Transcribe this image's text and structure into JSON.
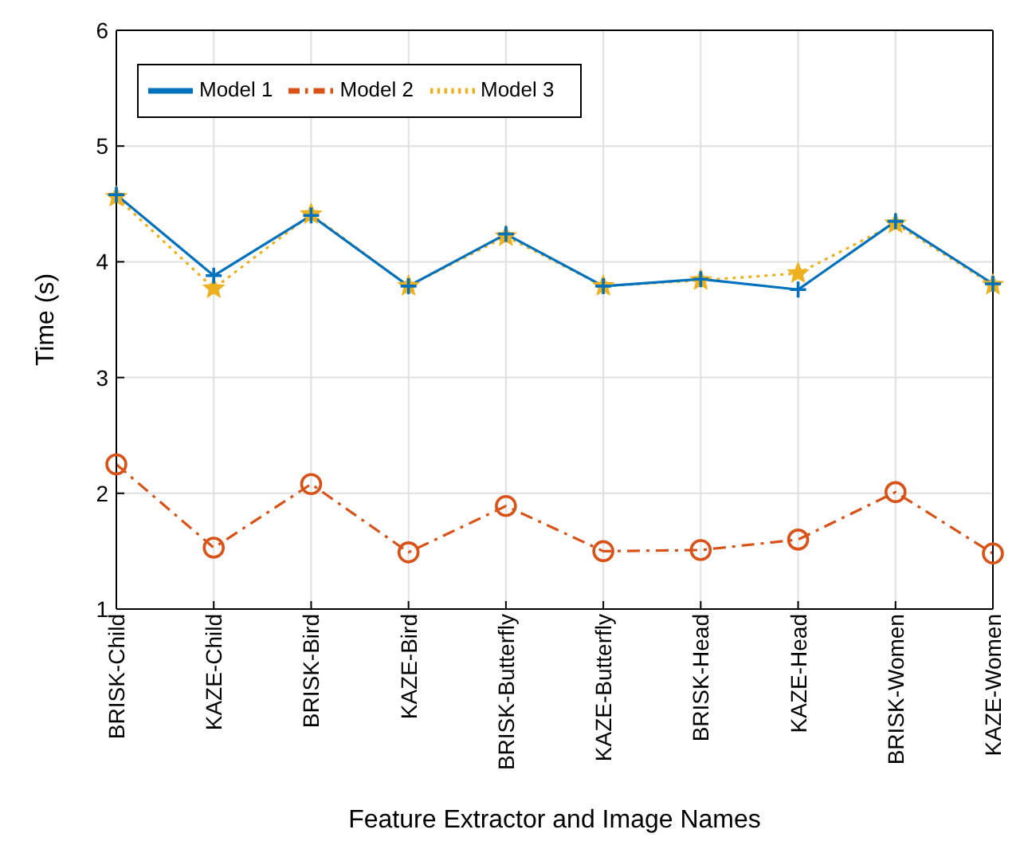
{
  "chart_data": {
    "type": "line",
    "xlabel": "Feature Extractor and Image Names",
    "ylabel": "Time (s)",
    "categories": [
      "BRISK-Child",
      "KAZE-Child",
      "BRISK-Bird",
      "KAZE-Bird",
      "BRISK-Butterfly",
      "KAZE-Butterfly",
      "BRISK-Head",
      "KAZE-Head",
      "BRISK-Women",
      "KAZE-Women"
    ],
    "series": [
      {
        "name": "Model 1",
        "color": "#0072bd",
        "marker": "cross",
        "line_style": "solid",
        "values": [
          4.58,
          3.88,
          4.4,
          3.79,
          4.24,
          3.79,
          3.85,
          3.76,
          4.35,
          3.81
        ]
      },
      {
        "name": "Model 2",
        "color": "#d95319",
        "marker": "circle",
        "line_style": "dashed",
        "values": [
          2.25,
          1.53,
          2.08,
          1.49,
          1.89,
          1.5,
          1.51,
          1.6,
          2.01,
          1.48
        ]
      },
      {
        "name": "Model 3",
        "color": "#edb120",
        "marker": "star",
        "line_style": "dotted",
        "values": [
          4.56,
          3.77,
          4.41,
          3.79,
          4.22,
          3.79,
          3.84,
          3.9,
          4.33,
          3.8
        ]
      }
    ],
    "ylim": [
      1,
      6
    ],
    "yticks": [
      1,
      2,
      3,
      4,
      5,
      6
    ],
    "grid": true,
    "legend": "top left"
  }
}
